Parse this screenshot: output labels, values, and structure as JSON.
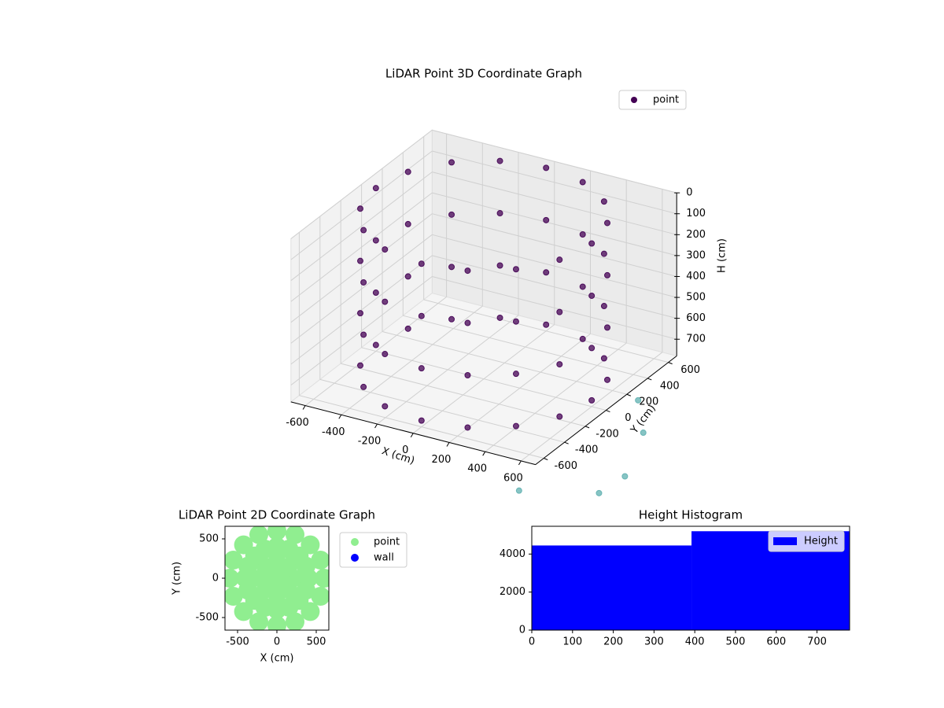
{
  "chart_data": [
    {
      "type": "scatter3d",
      "title": "LiDAR Point 3D Coordinate Graph",
      "x_label": "X (cm)",
      "y_label": "Y (cm)",
      "z_label": "H (cm)",
      "xlim": [
        -680,
        680
      ],
      "ylim": [
        -680,
        680
      ],
      "zlim": [
        780,
        0
      ],
      "xticks": [
        -600,
        -400,
        -200,
        0,
        200,
        400,
        600
      ],
      "yticks": [
        -600,
        -400,
        -200,
        0,
        200,
        400,
        600
      ],
      "zticks": [
        0,
        100,
        200,
        300,
        400,
        500,
        600,
        700
      ],
      "legend": "upper right",
      "grid": true,
      "series": [
        {
          "name": "point",
          "color": "#440154",
          "x": [
            600,
            554,
            424,
            230,
            0,
            -230,
            -424,
            -554,
            -600,
            -554,
            -424,
            -230,
            0,
            230,
            424,
            554,
            600,
            554,
            424,
            230,
            0,
            -230,
            -424,
            -554,
            -600,
            -554,
            -424,
            -230,
            0,
            230,
            424,
            554,
            600,
            554,
            424,
            230,
            0,
            -230,
            -424,
            -554,
            -600,
            -554,
            -424,
            -230,
            0,
            230,
            424,
            554,
            600,
            554,
            424,
            230,
            0,
            -230,
            -424,
            -554,
            -600,
            -554,
            -424,
            -230,
            0,
            230,
            424,
            554
          ],
          "y": [
            0,
            230,
            424,
            554,
            600,
            554,
            424,
            230,
            0,
            -230,
            -424,
            -554,
            -600,
            -554,
            -424,
            -230,
            0,
            230,
            424,
            554,
            600,
            554,
            424,
            230,
            0,
            -230,
            -424,
            -554,
            -600,
            -554,
            -424,
            -230,
            0,
            230,
            424,
            554,
            600,
            554,
            424,
            230,
            0,
            -230,
            -424,
            -554,
            -600,
            -554,
            -424,
            -230,
            0,
            230,
            424,
            554,
            600,
            554,
            424,
            230,
            0,
            -230,
            -424,
            -554,
            -600,
            -554,
            -424,
            -230
          ],
          "z": [
            0,
            0,
            0,
            0,
            0,
            0,
            0,
            0,
            0,
            0,
            0,
            0,
            0,
            0,
            0,
            0,
            250,
            250,
            250,
            250,
            250,
            250,
            250,
            250,
            250,
            250,
            250,
            250,
            250,
            250,
            250,
            250,
            500,
            500,
            500,
            500,
            500,
            500,
            500,
            500,
            500,
            500,
            500,
            500,
            500,
            500,
            500,
            500,
            750,
            750,
            750,
            750,
            750,
            750,
            750,
            750,
            750,
            750,
            750,
            750,
            750,
            750,
            750,
            750
          ]
        },
        {
          "color": "#5fb0b0",
          "x": [
            408,
            680,
            612,
            544,
            612
          ],
          "y": [
            -367,
            -68,
            299,
            544,
            476
          ],
          "z": [
            1084,
            1150,
            1225,
            970,
            1084
          ]
        }
      ]
    },
    {
      "type": "scatter",
      "title": "LiDAR Point 2D Coordinate Graph",
      "x_label": "X (cm)",
      "y_label": "Y (cm)",
      "xlim": [
        -660,
        660
      ],
      "ylim": [
        -660,
        660
      ],
      "xticks": [
        -500,
        0,
        500
      ],
      "yticks": [
        -500,
        0,
        500
      ],
      "legend": "outside right",
      "series": [
        {
          "name": "point",
          "color": "#90ee90",
          "x": [
            0,
            200,
            141,
            0,
            -141,
            -200,
            -141,
            0,
            141,
            400,
            370,
            283,
            153,
            0,
            -153,
            -283,
            -370,
            -400,
            -370,
            -283,
            -153,
            0,
            153,
            283,
            370,
            600,
            554,
            424,
            230,
            0,
            -230,
            -424,
            -554,
            -600,
            -554,
            -424,
            -230,
            0,
            230,
            424,
            554
          ],
          "y": [
            0,
            0,
            141,
            200,
            141,
            0,
            -141,
            -200,
            -141,
            0,
            153,
            283,
            370,
            400,
            370,
            283,
            153,
            0,
            -153,
            -283,
            -370,
            -400,
            -370,
            -283,
            -153,
            0,
            230,
            424,
            554,
            600,
            554,
            424,
            230,
            0,
            -230,
            -424,
            -554,
            -600,
            -554,
            -424,
            -230
          ]
        },
        {
          "name": "wall",
          "color": "#0000ff",
          "x": [],
          "y": []
        }
      ]
    },
    {
      "type": "histogram",
      "title": "Height Histogram",
      "bins": [
        0,
        392,
        780
      ],
      "counts": [
        4450,
        5200
      ],
      "series_name": "Height",
      "color": "#0000ff",
      "xlim": [
        0,
        780
      ],
      "ylim": [
        0,
        5460
      ],
      "xticks": [
        0,
        100,
        200,
        300,
        400,
        500,
        600,
        700
      ],
      "yticks": [
        0,
        2000,
        4000
      ],
      "legend": "upper right"
    }
  ]
}
